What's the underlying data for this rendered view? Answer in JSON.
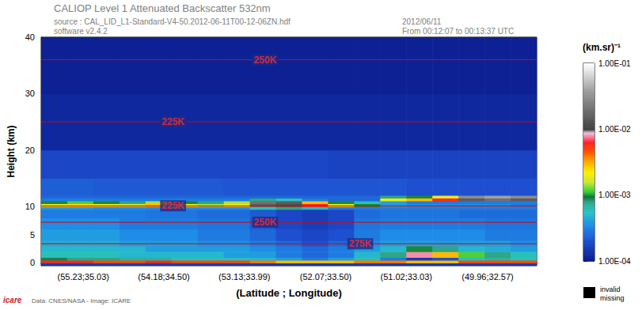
{
  "chart_data": {
    "type": "heatmap",
    "title": "CALIOP Level 1 Attenuated Backscatter 532nm",
    "subtitle": "source : CAL_LID_L1-Standard-V4-50.2012-06-11T00-12-06ZN.hdf",
    "annotations": [
      "software v2.4.2",
      "2012/06/11",
      "From 00:12:07 to 00:13:37 UTC",
      "Data: CNES/NASA - Image: ICARE",
      "icare"
    ],
    "xlabel": "(Latitude ; Longitude)",
    "ylabel": "Height (km)",
    "xlim": [
      55.78,
      49.32
    ],
    "xticks": [
      {
        "value": 55.23,
        "label": "(55.23;35.03)"
      },
      {
        "value": 54.18,
        "label": "(54.18;34.50)"
      },
      {
        "value": 53.13,
        "label": "(53.13;33.99)"
      },
      {
        "value": 52.07,
        "label": "(52.07;33.50)"
      },
      {
        "value": 51.02,
        "label": "(51.02;33.03)"
      },
      {
        "value": 49.96,
        "label": "(49.96;32.57)"
      }
    ],
    "ylim": [
      -0.5,
      40
    ],
    "yticks": [
      0,
      5,
      10,
      20,
      30,
      40
    ],
    "x_edges": [
      55.78,
      55.44,
      55.1,
      54.76,
      54.42,
      54.08,
      53.74,
      53.4,
      53.06,
      52.72,
      52.38,
      52.04,
      51.7,
      51.36,
      51.02,
      50.68,
      50.34,
      50.0,
      49.66,
      49.32
    ],
    "y_edges": [
      -0.5,
      0,
      0.5,
      1,
      2,
      3,
      4,
      6,
      8,
      9.5,
      10,
      10.5,
      11,
      11.5,
      12,
      15,
      20,
      30,
      40
    ],
    "cells": [
      [
        0.00015,
        0.00015,
        0.00015,
        0.00015,
        0.00015,
        0.00015,
        0.00015,
        0.00015,
        0.00015,
        0.00015,
        0.00015,
        0.00015,
        0.00015,
        0.00015,
        0.00015,
        0.00015,
        0.00015,
        0.00015,
        0.00015
      ],
      [
        0.006,
        0.006,
        0.005,
        0.005,
        0.006,
        0.005,
        0.005,
        0.005,
        0.004,
        0.003,
        0.003,
        0.003,
        0.004,
        0.004,
        0.003,
        0.003,
        0.005,
        0.005,
        0.005
      ],
      [
        0.0009,
        0.0008,
        0.0008,
        0.0007,
        0.0007,
        0.0006,
        0.0006,
        0.0006,
        0.0005,
        0.0004,
        0.0003,
        0.0004,
        0.0006,
        0.0003,
        0.00015,
        0.0002,
        0.0006,
        0.0007,
        0.0006
      ],
      [
        0.0006,
        0.0006,
        0.0006,
        0.0005,
        0.0005,
        0.0005,
        0.0005,
        0.0004,
        0.0004,
        0.0003,
        0.00025,
        0.0003,
        0.0005,
        0.0008,
        0.008,
        0.003,
        0.0012,
        0.0008,
        0.0006
      ],
      [
        0.0005,
        0.0005,
        0.0005,
        0.0005,
        0.0004,
        0.0004,
        0.0004,
        0.0004,
        0.00035,
        0.0003,
        0.00025,
        0.0003,
        0.0004,
        0.0005,
        0.001,
        0.0008,
        0.0005,
        0.00045,
        0.0004
      ],
      [
        0.00045,
        0.00045,
        0.00045,
        0.0004,
        0.0004,
        0.0004,
        0.00035,
        0.00035,
        0.0003,
        0.00025,
        0.0002,
        0.00025,
        0.00035,
        0.0004,
        0.0004,
        0.0004,
        0.0004,
        0.0004,
        0.00035
      ],
      [
        0.0004,
        0.0004,
        0.0004,
        0.00035,
        0.00035,
        0.00035,
        0.0003,
        0.0003,
        0.00025,
        0.0002,
        0.00018,
        0.0002,
        0.0003,
        0.00035,
        0.00035,
        0.00035,
        0.00035,
        0.0003,
        0.0003
      ],
      [
        0.00035,
        0.00035,
        0.00035,
        0.0003,
        0.0003,
        0.0003,
        0.00028,
        0.00028,
        0.00022,
        0.00018,
        0.00016,
        0.00018,
        0.00028,
        0.0003,
        0.0003,
        0.0003,
        0.0003,
        0.00028,
        0.00028
      ],
      [
        0.0003,
        0.0003,
        0.0003,
        0.0003,
        0.00028,
        0.00028,
        0.00026,
        0.00026,
        0.00022,
        0.00018,
        0.00016,
        0.00018,
        0.00026,
        0.00028,
        0.00028,
        0.00028,
        0.00026,
        0.00026,
        0.00026
      ],
      [
        0.0004,
        0.0004,
        0.00035,
        0.00035,
        0.00035,
        0.00035,
        0.00035,
        0.00035,
        0.0006,
        0.0008,
        0.0005,
        0.0003,
        0.0003,
        0.0003,
        0.0003,
        0.0003,
        0.0003,
        0.0003,
        0.0003
      ],
      [
        0.002,
        0.0025,
        0.002,
        0.0018,
        0.003,
        0.002,
        0.0015,
        0.002,
        0.015,
        0.012,
        0.006,
        0.002,
        0.001,
        0.0004,
        0.00035,
        0.00035,
        0.00035,
        0.00035,
        0.0003
      ],
      [
        0.001,
        0.0012,
        0.001,
        0.0008,
        0.0015,
        0.001,
        0.0008,
        0.0015,
        0.02,
        0.015,
        0.003,
        0.001,
        0.0006,
        0.0004,
        0.0003,
        0.0003,
        0.0003,
        0.0003,
        0.0003
      ],
      [
        0.0003,
        0.0003,
        0.0003,
        0.0003,
        0.0003,
        0.0003,
        0.0003,
        0.0003,
        0.0008,
        0.0006,
        0.0003,
        0.00025,
        0.00025,
        0.002,
        0.003,
        0.006,
        0.015,
        0.02,
        0.015
      ],
      [
        0.00025,
        0.00025,
        0.00025,
        0.00025,
        0.00025,
        0.00025,
        0.00025,
        0.00025,
        0.00025,
        0.00025,
        0.00025,
        0.00025,
        0.00025,
        0.0008,
        0.001,
        0.002,
        0.03,
        0.04,
        0.03
      ],
      [
        0.00023,
        0.00023,
        0.00022,
        0.00022,
        0.00022,
        0.00022,
        0.00022,
        0.00021,
        0.00021,
        0.00021,
        0.00021,
        0.00021,
        0.00021,
        0.00021,
        0.0002,
        0.0002,
        0.0002,
        0.0002,
        0.0002
      ],
      [
        0.00018,
        0.00018,
        0.00018,
        0.00018,
        0.00018,
        0.00018,
        0.00018,
        0.00018,
        0.00018,
        0.00018,
        0.00018,
        0.00017,
        0.00017,
        0.00017,
        0.00017,
        0.00017,
        0.00017,
        0.00017,
        0.00017
      ],
      [
        0.00012,
        0.00012,
        0.00012,
        0.00012,
        0.00012,
        0.00012,
        0.00012,
        0.00012,
        0.00012,
        0.00012,
        0.00012,
        0.00012,
        0.00012,
        0.00012,
        0.00012,
        0.00012,
        0.00012,
        0.00012,
        0.00012
      ],
      [
        0.00011,
        0.00011,
        0.00011,
        0.00011,
        0.00011,
        0.00011,
        0.00011,
        0.00011,
        0.00011,
        0.00011,
        0.00011,
        0.00011,
        0.00011,
        0.00011,
        0.00011,
        0.00011,
        0.00011,
        0.00011,
        0.00011
      ]
    ],
    "colorbar": {
      "label": "(km.sr)⁻¹",
      "range": [
        0.0001,
        0.1
      ],
      "log": true,
      "ticks": [
        {
          "value": 0.0001,
          "label": "1.00E-04"
        },
        {
          "value": 0.001,
          "label": "1.00E-03"
        },
        {
          "value": 0.01,
          "label": "1.00E-02"
        },
        {
          "value": 0.1,
          "label": "1.00E-01"
        }
      ],
      "missing_label": [
        "invalid",
        "missing"
      ]
    },
    "contours": [
      {
        "label": "250K",
        "height": 36,
        "label_x": 52.86
      },
      {
        "label": "225K",
        "height": 25,
        "label_x": 54.06
      },
      {
        "label": "225K",
        "height": 10.1,
        "label_x": 54.06
      },
      {
        "label": "250K",
        "height": 7.2,
        "label_x": 52.86
      },
      {
        "label": "275K",
        "height": 3.4,
        "label_x": 51.62
      }
    ]
  }
}
